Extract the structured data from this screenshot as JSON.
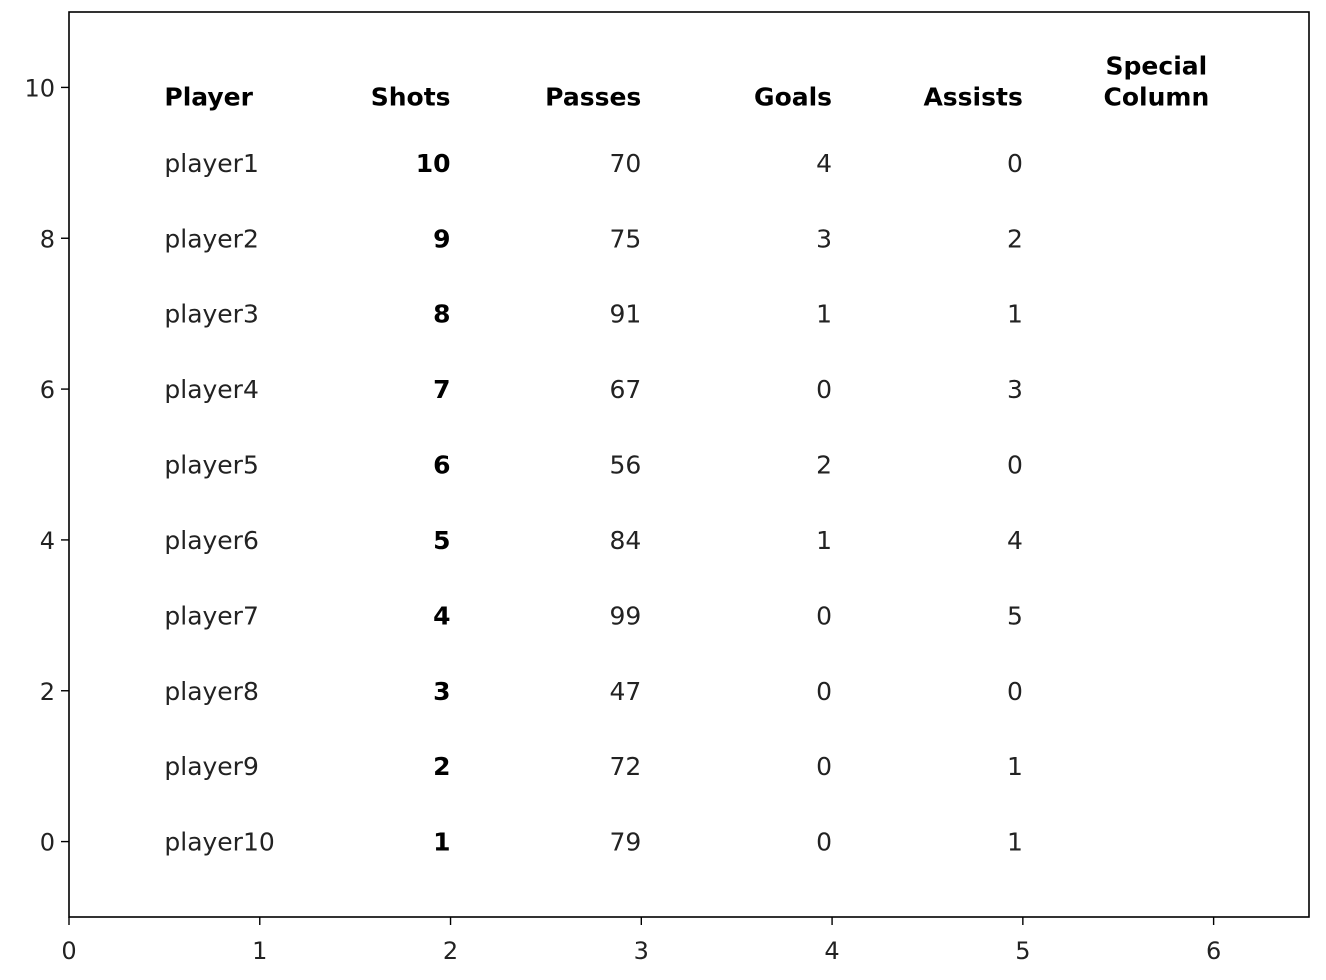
{
  "chart_data": {
    "type": "table",
    "columns": [
      "Player",
      "Shots",
      "Passes",
      "Goals",
      "Assists",
      "Special\nColumn"
    ],
    "rows": [
      [
        "player1",
        10,
        70,
        4,
        0
      ],
      [
        "player2",
        9,
        75,
        3,
        2
      ],
      [
        "player3",
        8,
        91,
        1,
        1
      ],
      [
        "player4",
        7,
        67,
        0,
        3
      ],
      [
        "player5",
        6,
        56,
        2,
        0
      ],
      [
        "player6",
        5,
        84,
        1,
        4
      ],
      [
        "player7",
        4,
        99,
        0,
        5
      ],
      [
        "player8",
        3,
        47,
        0,
        0
      ],
      [
        "player9",
        2,
        72,
        0,
        1
      ],
      [
        "player10",
        1,
        79,
        0,
        1
      ]
    ],
    "bold_column": "Shots",
    "xlim": [
      0,
      6.5
    ],
    "ylim": [
      -1,
      11
    ],
    "xticks": [
      0,
      1,
      2,
      3,
      4,
      5,
      6
    ],
    "yticks": [
      0,
      2,
      4,
      6,
      8,
      10
    ],
    "grid": false
  }
}
